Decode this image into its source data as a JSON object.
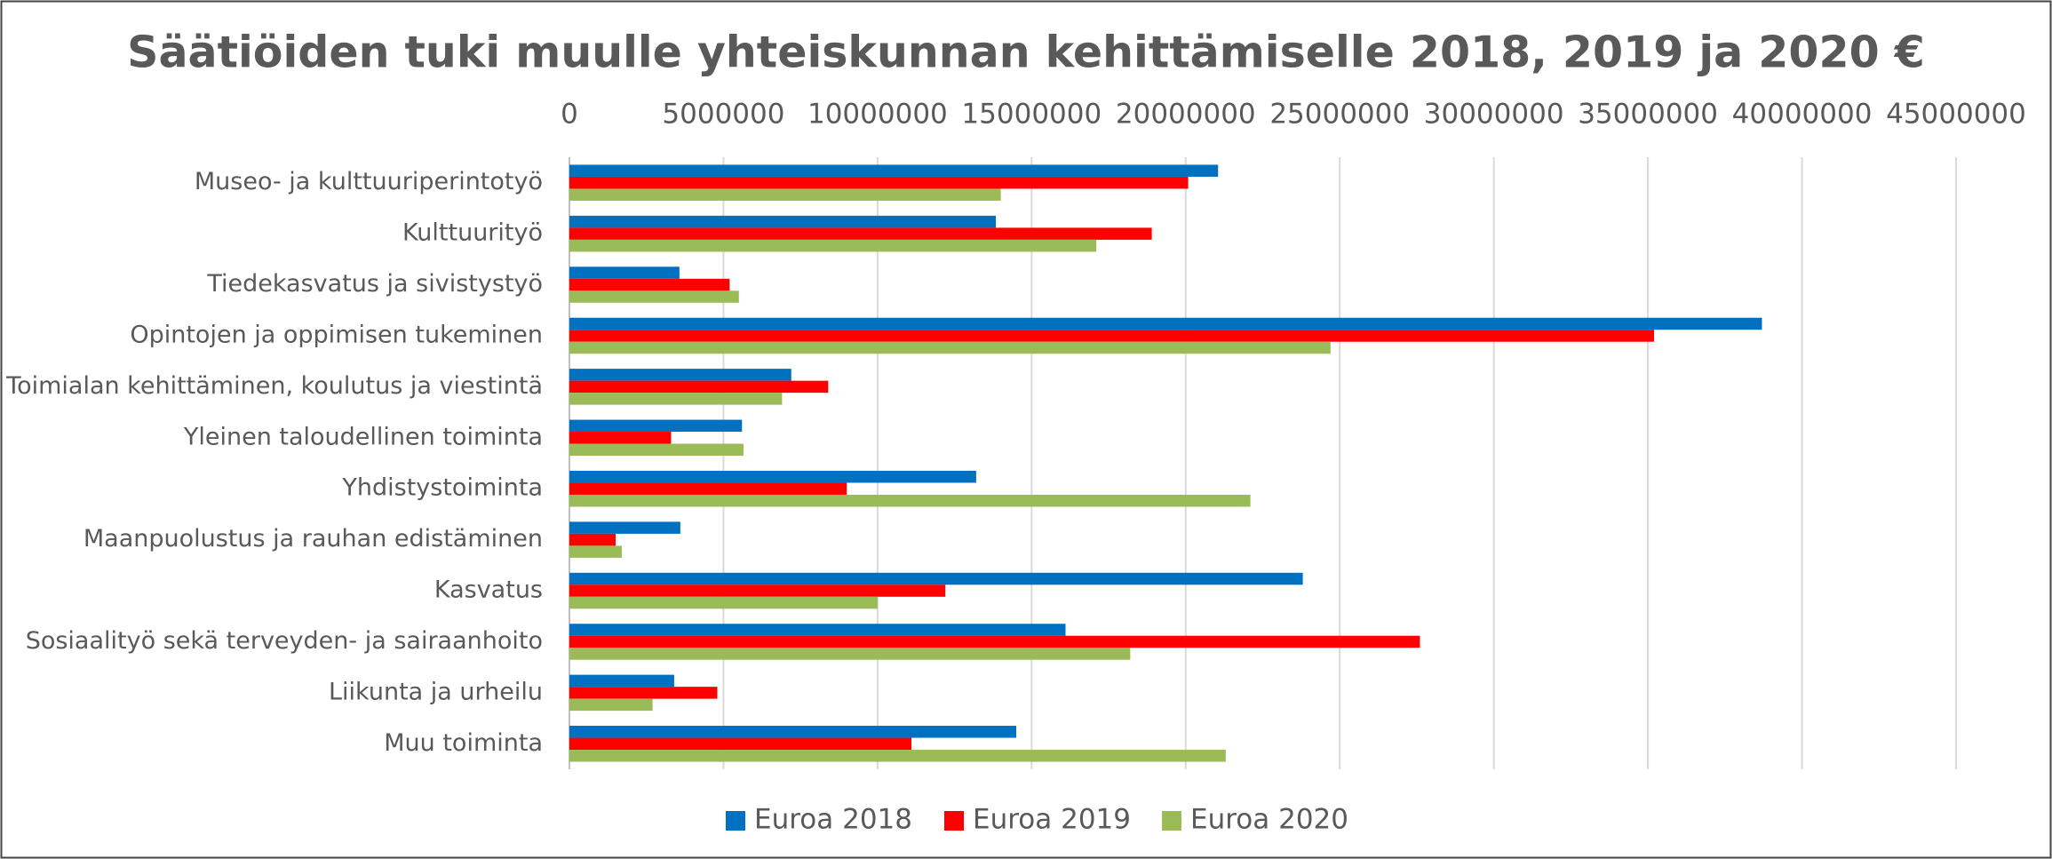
{
  "chart_data": {
    "type": "barh",
    "title": "Säätiöiden tuki muulle yhteiskunnan kehittämiselle 2018, 2019 ja 2020 €",
    "categories": [
      "Museo- ja kulttuuriperintotyö",
      "Kulttuurityö",
      "Tiedekasvatus ja sivistystyö",
      "Opintojen ja oppimisen tukeminen",
      "Toimialan kehittäminen, koulutus ja viestintä",
      "Yleinen taloudellinen toiminta",
      "Yhdistystoiminta",
      "Maanpuolustus ja rauhan edistäminen",
      "Kasvatus",
      "Sosiaalityö sekä terveyden- ja sairaanhoito",
      "Liikunta ja urheilu",
      "Muu toiminta"
    ],
    "series": [
      {
        "name": "Euroa 2018",
        "color": "#0070c0",
        "values": [
          21050000,
          13840000,
          3570000,
          38700000,
          7200000,
          5600000,
          13200000,
          3600000,
          23800000,
          16100000,
          3400000,
          14500000
        ]
      },
      {
        "name": "Euroa 2019",
        "color": "#ff0000",
        "values": [
          20080000,
          18900000,
          5200000,
          35200000,
          8400000,
          3300000,
          9000000,
          1500000,
          12200000,
          27600000,
          4800000,
          11100000
        ]
      },
      {
        "name": "Euroa 2020",
        "color": "#9bbb59",
        "values": [
          14000000,
          17100000,
          5500000,
          24700000,
          6900000,
          5650000,
          22100000,
          1700000,
          10000000,
          18200000,
          2700000,
          21300000
        ]
      }
    ],
    "xlim": [
      0,
      45000000
    ],
    "xticks": [
      0,
      5000000,
      10000000,
      15000000,
      20000000,
      25000000,
      30000000,
      35000000,
      40000000,
      45000000
    ],
    "grid": true,
    "legend": "bottom"
  }
}
